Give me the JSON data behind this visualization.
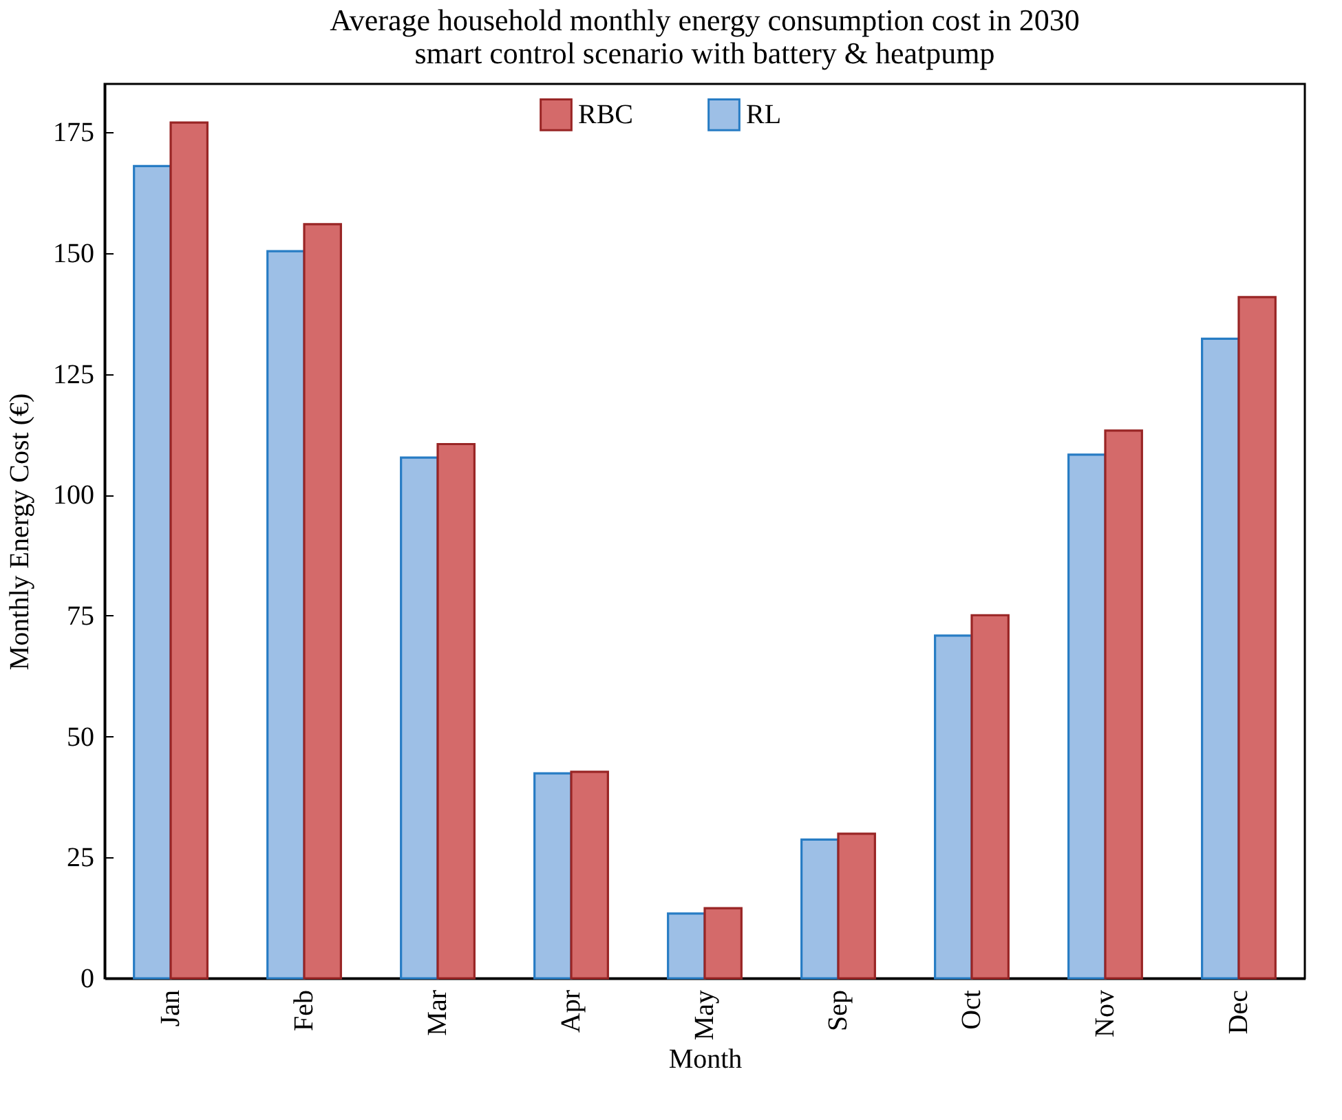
{
  "chart_data": {
    "type": "bar",
    "title": "Average household monthly energy consumption cost in 2030",
    "subtitle": "smart control scenario with battery & heatpump",
    "xlabel": "Month",
    "ylabel": "Monthly Energy Cost (€)",
    "categories": [
      "Jan",
      "Feb",
      "Mar",
      "Apr",
      "May",
      "Sep",
      "Oct",
      "Nov",
      "Dec"
    ],
    "series": [
      {
        "name": "RL",
        "color": "#9dbfe6",
        "values": [
          168.0,
          150.4,
          107.7,
          42.4,
          13.4,
          28.7,
          70.9,
          108.3,
          132.3
        ]
      },
      {
        "name": "RBC",
        "color": "#d46a6a",
        "values": [
          177.0,
          156.0,
          110.5,
          42.7,
          14.5,
          29.9,
          75.1,
          113.3,
          140.9
        ]
      }
    ],
    "ylim": [
      0,
      185
    ],
    "yticks": [
      0,
      25,
      50,
      75,
      100,
      125,
      150,
      175
    ],
    "grid": false,
    "legend": "top"
  }
}
